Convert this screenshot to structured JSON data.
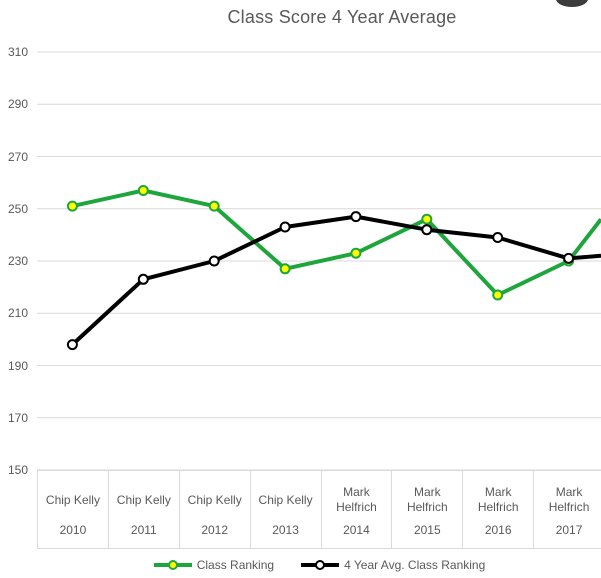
{
  "corner_element": {
    "color": "#3c3c3c"
  },
  "chart_data": {
    "type": "line",
    "title": "Class Score 4 Year Average",
    "title_color": "#595959",
    "x_axis": {
      "group_labels": [
        "Chip Kelly",
        "Chip Kelly",
        "Chip Kelly",
        "Chip Kelly",
        "Mark Helfrich",
        "Mark Helfrich",
        "Mark Helfrich",
        "Mark Helfrich"
      ],
      "years": [
        "2010",
        "2011",
        "2012",
        "2013",
        "2014",
        "2015",
        "2016",
        "2017"
      ],
      "note": "chart cropped at right edge; lines continue toward off-screen next point"
    },
    "y_axis": {
      "min": 150,
      "max": 310,
      "tick_step": 20,
      "ticks": [
        310,
        290,
        270,
        250,
        230,
        210,
        190,
        170,
        150
      ]
    },
    "series": [
      {
        "name": "Class Ranking",
        "values": [
          251,
          257,
          251,
          227,
          233,
          246,
          217,
          230
        ],
        "line_color": "#1ea53c",
        "marker_fill": "#ffff00",
        "marker_stroke": "#1ea53c",
        "right_edge_value": 246
      },
      {
        "name": "4 Year Avg. Class Ranking",
        "values": [
          198,
          223,
          230,
          243,
          247,
          242,
          239,
          231
        ],
        "line_color": "#000000",
        "marker_fill": "#ffffff",
        "marker_stroke": "#000000",
        "right_edge_value": 232
      }
    ],
    "gridline_color": "#d9d9d9",
    "axis_text_color": "#595959",
    "grid": true,
    "legend_position": "bottom"
  }
}
